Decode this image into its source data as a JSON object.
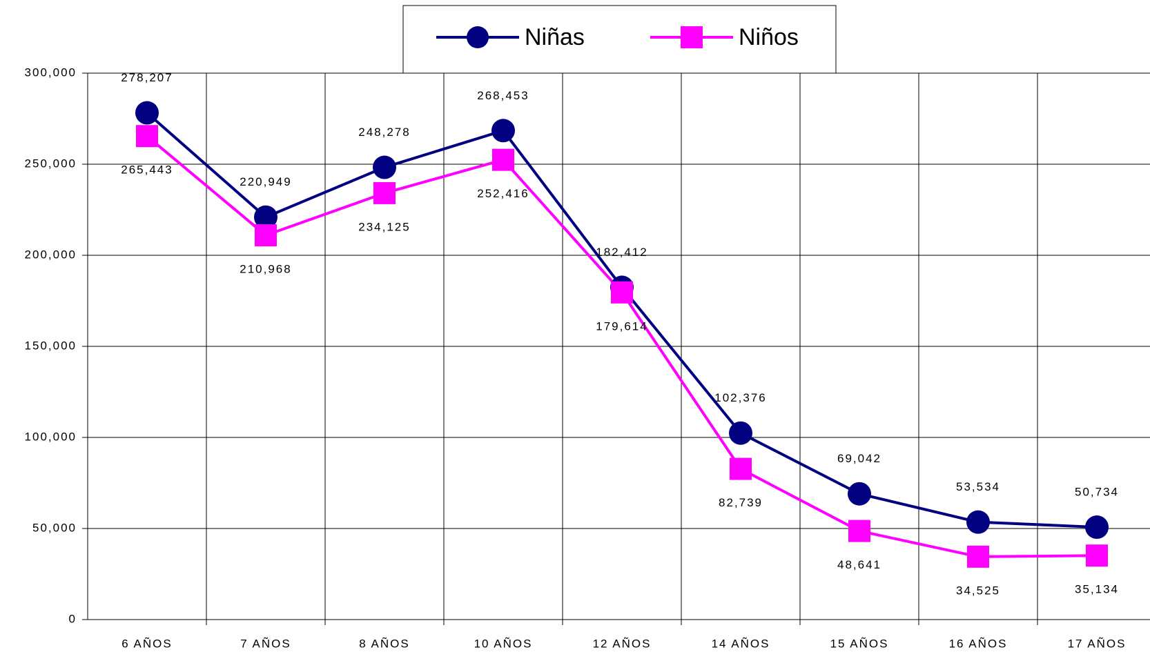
{
  "chart_data": {
    "type": "line",
    "categories": [
      "6 AÑOS",
      "7 AÑOS",
      "8 AÑOS",
      "10 AÑOS",
      "12 AÑOS",
      "14 AÑOS",
      "15 AÑOS",
      "16 AÑOS",
      "17 AÑOS"
    ],
    "series": [
      {
        "name": "Niñas",
        "color": "#000080",
        "marker": "circle",
        "values": [
          278207,
          220949,
          248278,
          268453,
          182412,
          102376,
          69042,
          53534,
          50734
        ],
        "value_labels": [
          "278,207",
          "220,949",
          "248,278",
          "268,453",
          "182,412",
          "102,376",
          "69,042",
          "53,534",
          "50,734"
        ]
      },
      {
        "name": "Niños",
        "color": "#ff00ff",
        "marker": "square",
        "values": [
          265443,
          210968,
          234125,
          252416,
          179614,
          82739,
          48641,
          34525,
          35134
        ],
        "value_labels": [
          "265,443",
          "210,968",
          "234,125",
          "252,416",
          "179,614",
          "82,739",
          "48,641",
          "34,525",
          "35,134"
        ]
      }
    ],
    "ylim": [
      0,
      300000
    ],
    "yticks": [
      0,
      {
        "value": 50000,
        "label": "50,000"
      },
      {
        "value": 100000,
        "label": "100,000"
      },
      {
        "value": 150000,
        "label": "150,000"
      },
      {
        "value": 200000,
        "label": "200,000"
      },
      {
        "value": 250000,
        "label": "250,000"
      },
      {
        "value": 300000,
        "label": "300,000"
      }
    ],
    "grid": true
  }
}
